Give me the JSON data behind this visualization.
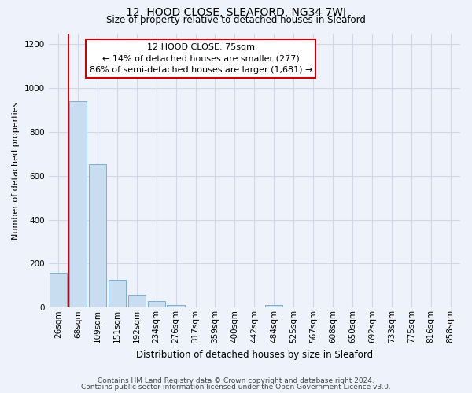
{
  "title": "12, HOOD CLOSE, SLEAFORD, NG34 7WJ",
  "subtitle": "Size of property relative to detached houses in Sleaford",
  "xlabel": "Distribution of detached houses by size in Sleaford",
  "ylabel": "Number of detached properties",
  "bar_labels": [
    "26sqm",
    "68sqm",
    "109sqm",
    "151sqm",
    "192sqm",
    "234sqm",
    "276sqm",
    "317sqm",
    "359sqm",
    "400sqm",
    "442sqm",
    "484sqm",
    "525sqm",
    "567sqm",
    "608sqm",
    "650sqm",
    "692sqm",
    "733sqm",
    "775sqm",
    "816sqm",
    "858sqm"
  ],
  "bar_values": [
    160,
    940,
    655,
    125,
    60,
    28,
    10,
    2,
    0,
    0,
    0,
    10,
    0,
    0,
    0,
    0,
    0,
    0,
    0,
    0,
    0
  ],
  "bar_color": "#c8ddf0",
  "bar_edge_color": "#7aafd4",
  "property_line_label": "12 HOOD CLOSE: 75sqm",
  "annotation_line1": "← 14% of detached houses are smaller (277)",
  "annotation_line2": "86% of semi-detached houses are larger (1,681) →",
  "annotation_box_color": "#ffffff",
  "annotation_box_edge": "#cc0000",
  "vline_color": "#cc0000",
  "vline_x": 0.5,
  "ylim": [
    0,
    1250
  ],
  "yticks": [
    0,
    200,
    400,
    600,
    800,
    1000,
    1200
  ],
  "footer_line1": "Contains HM Land Registry data © Crown copyright and database right 2024.",
  "footer_line2": "Contains public sector information licensed under the Open Government Licence v3.0.",
  "bg_color": "#eef2fa",
  "grid_color": "#d0d8e8",
  "title_fontsize": 10,
  "subtitle_fontsize": 8.5,
  "xlabel_fontsize": 8.5,
  "ylabel_fontsize": 8,
  "tick_fontsize": 7.5,
  "annotation_fontsize": 8,
  "footer_fontsize": 6.5
}
